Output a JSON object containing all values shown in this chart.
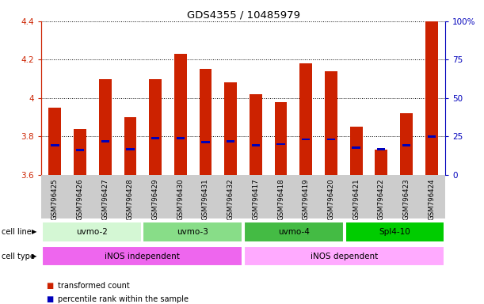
{
  "title": "GDS4355 / 10485979",
  "samples": [
    "GSM796425",
    "GSM796426",
    "GSM796427",
    "GSM796428",
    "GSM796429",
    "GSM796430",
    "GSM796431",
    "GSM796432",
    "GSM796417",
    "GSM796418",
    "GSM796419",
    "GSM796420",
    "GSM796421",
    "GSM796422",
    "GSM796423",
    "GSM796424"
  ],
  "red_values": [
    3.95,
    3.84,
    4.1,
    3.9,
    4.1,
    4.23,
    4.15,
    4.08,
    4.02,
    3.98,
    4.18,
    4.14,
    3.85,
    3.73,
    3.92,
    4.4
  ],
  "blue_values": [
    3.755,
    3.73,
    3.775,
    3.735,
    3.79,
    3.79,
    3.77,
    3.775,
    3.755,
    3.76,
    3.785,
    3.785,
    3.74,
    3.735,
    3.755,
    3.8
  ],
  "ylim_left": [
    3.6,
    4.4
  ],
  "ylim_right": [
    0,
    100
  ],
  "yticks_left": [
    3.6,
    3.8,
    4.0,
    4.2,
    4.4
  ],
  "yticks_right": [
    0,
    25,
    50,
    75,
    100
  ],
  "ytick_labels_left": [
    "3.6",
    "3.8",
    "4",
    "4.2",
    "4.4"
  ],
  "ytick_labels_right": [
    "0",
    "25",
    "50",
    "75",
    "100%"
  ],
  "cell_lines": [
    {
      "label": "uvmo-2",
      "start": 0,
      "end": 3,
      "color": "#d4f7d4"
    },
    {
      "label": "uvmo-3",
      "start": 4,
      "end": 7,
      "color": "#88dd88"
    },
    {
      "label": "uvmo-4",
      "start": 8,
      "end": 11,
      "color": "#44bb44"
    },
    {
      "label": "Spl4-10",
      "start": 12,
      "end": 15,
      "color": "#00cc00"
    }
  ],
  "cell_types": [
    {
      "label": "iNOS independent",
      "start": 0,
      "end": 7,
      "color": "#ee66ee"
    },
    {
      "label": "iNOS dependent",
      "start": 8,
      "end": 15,
      "color": "#ffaaff"
    }
  ],
  "bar_color": "#cc2200",
  "blue_color": "#0000bb",
  "bg_color": "#ffffff",
  "label_box_color": "#cccccc",
  "left_tick_color": "#cc2200",
  "right_tick_color": "#0000bb",
  "bar_width": 0.5,
  "legend_items": [
    {
      "color": "#cc2200",
      "label": "transformed count"
    },
    {
      "color": "#0000bb",
      "label": "percentile rank within the sample"
    }
  ]
}
